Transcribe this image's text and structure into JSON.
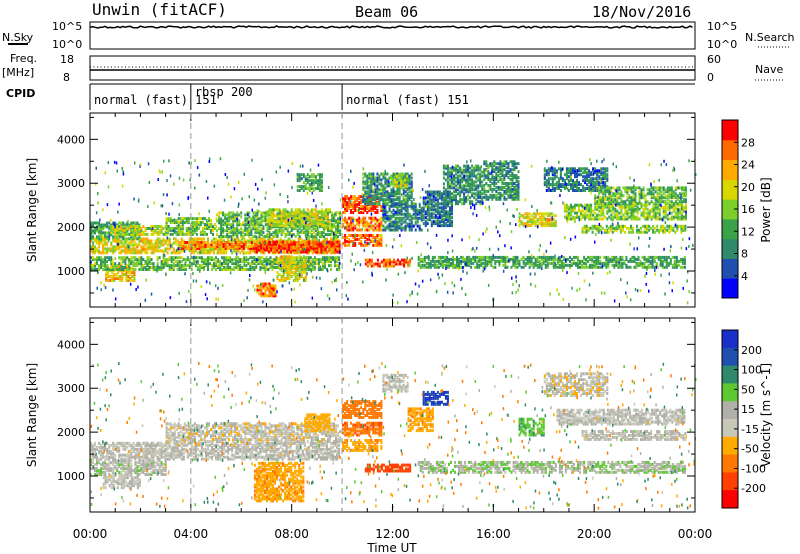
{
  "header": {
    "station": "Unwin (fitACF)",
    "beam": "Beam 06",
    "date": "18/Nov/2016"
  },
  "strip_labels": {
    "nsky": "N.Sky",
    "nsky_hi": "10^5",
    "nsky_lo": "10^0",
    "nsearch": "N.Search",
    "nsearch_hi": "10^5",
    "nsearch_lo": "10^0",
    "freq": "Freq.",
    "freq_unit": "[MHz]",
    "freq_hi": "18",
    "freq_lo": "8",
    "nave_hi": "60",
    "nave_lo": "0",
    "nave": "Nave",
    "cpid": "CPID"
  },
  "cpid_segments": [
    {
      "label": "normal (fast) 151",
      "start": 0.0,
      "end": 4.0
    },
    {
      "label": "rbsp 200",
      "start": 4.0,
      "end": 10.0
    },
    {
      "label": "normal (fast) 151",
      "start": 10.0,
      "end": 24.0
    }
  ],
  "colors": {
    "power": [
      "#0000ff",
      "#1f50b0",
      "#2e8a6a",
      "#3aa34a",
      "#7ccf2a",
      "#d8d800",
      "#ffaa00",
      "#ff6a00",
      "#ff0000"
    ],
    "velocity": [
      "#1a2fc8",
      "#1f50b0",
      "#2e8a6a",
      "#5ec832",
      "#b0b0a8",
      "#c8c8b8",
      "#ffaa00",
      "#ff7800",
      "#ff4000",
      "#ff0000"
    ]
  },
  "chart_data": [
    {
      "type": "heatmap",
      "title": "",
      "ylabel": "Slant Range [km]",
      "xlabel": "Time UT",
      "x_ticks": [
        "00:00",
        "04:00",
        "08:00",
        "12:00",
        "16:00",
        "20:00",
        "00:00"
      ],
      "xlim": [
        0,
        24
      ],
      "y_ticks": [
        "1000",
        "2000",
        "3000",
        "4000"
      ],
      "ylim": [
        180,
        4600
      ],
      "colorbar_label": "Power [dB]",
      "colorbar_ticks": [
        "4",
        "8",
        "12",
        "16",
        "20",
        "24",
        "28"
      ],
      "colorbar_range": [
        0,
        32
      ],
      "bands": [
        {
          "t0": 0.0,
          "t1": 9.9,
          "r0": 1380,
          "r1": 1720,
          "p": 20
        },
        {
          "t0": 3.5,
          "t1": 9.9,
          "r0": 1480,
          "r1": 1620,
          "p": 26
        },
        {
          "t0": 6.5,
          "t1": 9.9,
          "r0": 1400,
          "r1": 1650,
          "p": 28
        },
        {
          "t0": 0.0,
          "t1": 2.0,
          "r0": 1700,
          "r1": 2100,
          "p": 12
        },
        {
          "t0": 0.8,
          "t1": 3.0,
          "r0": 1800,
          "r1": 2000,
          "p": 18
        },
        {
          "t0": 0.6,
          "t1": 1.8,
          "r0": 750,
          "r1": 1100,
          "p": 22
        },
        {
          "t0": 0.0,
          "t1": 9.9,
          "r0": 1000,
          "r1": 1300,
          "p": 14
        },
        {
          "t0": 6.6,
          "t1": 7.4,
          "r0": 400,
          "r1": 700,
          "p": 26
        },
        {
          "t0": 7.4,
          "t1": 8.6,
          "r0": 750,
          "r1": 1300,
          "p": 20
        },
        {
          "t0": 3.0,
          "t1": 5.0,
          "r0": 1800,
          "r1": 2200,
          "p": 14
        },
        {
          "t0": 5.0,
          "t1": 9.9,
          "r0": 1750,
          "r1": 2300,
          "p": 14
        },
        {
          "t0": 7.0,
          "t1": 9.5,
          "r0": 2000,
          "r1": 2400,
          "p": 18
        },
        {
          "t0": 8.2,
          "t1": 9.2,
          "r0": 2800,
          "r1": 3200,
          "p": 12
        },
        {
          "t0": 10.0,
          "t1": 11.6,
          "r0": 2300,
          "r1": 2700,
          "p": 28
        },
        {
          "t0": 10.0,
          "t1": 11.6,
          "r0": 1900,
          "r1": 2200,
          "p": 26
        },
        {
          "t0": 10.0,
          "t1": 11.6,
          "r0": 1550,
          "r1": 1800,
          "p": 26
        },
        {
          "t0": 11.6,
          "t1": 13.2,
          "r0": 1900,
          "r1": 2500,
          "p": 8
        },
        {
          "t0": 10.8,
          "t1": 12.8,
          "r0": 2500,
          "r1": 3200,
          "p": 10
        },
        {
          "t0": 11.9,
          "t1": 12.6,
          "r0": 2900,
          "r1": 3200,
          "p": 18
        },
        {
          "t0": 10.9,
          "t1": 12.7,
          "r0": 1080,
          "r1": 1250,
          "p": 28
        },
        {
          "t0": 13.2,
          "t1": 14.4,
          "r0": 2000,
          "r1": 2800,
          "p": 8
        },
        {
          "t0": 14.0,
          "t1": 15.6,
          "r0": 2500,
          "r1": 3400,
          "p": 10
        },
        {
          "t0": 15.6,
          "t1": 17.0,
          "r0": 2600,
          "r1": 3500,
          "p": 10
        },
        {
          "t0": 17.0,
          "t1": 18.5,
          "r0": 2000,
          "r1": 2300,
          "p": 20
        },
        {
          "t0": 18.0,
          "t1": 20.5,
          "r0": 2800,
          "r1": 3300,
          "p": 8
        },
        {
          "t0": 18.8,
          "t1": 23.6,
          "r0": 2150,
          "r1": 2500,
          "p": 16
        },
        {
          "t0": 19.5,
          "t1": 23.6,
          "r0": 1850,
          "r1": 2000,
          "p": 16
        },
        {
          "t0": 20.0,
          "t1": 23.6,
          "r0": 2500,
          "r1": 2900,
          "p": 14
        },
        {
          "t0": 13.0,
          "t1": 23.6,
          "r0": 1050,
          "r1": 1300,
          "p": 12
        }
      ]
    },
    {
      "type": "heatmap",
      "title": "",
      "ylabel": "Slant Range [km]",
      "xlabel": "Time UT",
      "x_ticks": [
        "00:00",
        "04:00",
        "08:00",
        "12:00",
        "16:00",
        "20:00",
        "00:00"
      ],
      "xlim": [
        0,
        24
      ],
      "y_ticks": [
        "1000",
        "2000",
        "3000",
        "4000"
      ],
      "ylim": [
        180,
        4600
      ],
      "colorbar_label": "Velocity [m s^-1]",
      "colorbar_ticks": [
        "200",
        "100",
        "50",
        "15",
        "-15",
        "-50",
        "-100",
        "-200"
      ],
      "colorbar_range": [
        -250,
        250
      ],
      "bands": [
        {
          "t0": 0.0,
          "t1": 9.9,
          "r0": 1350,
          "r1": 1750,
          "v": 0
        },
        {
          "t0": 0.0,
          "t1": 3.0,
          "r0": 1000,
          "r1": 1350,
          "v": 5
        },
        {
          "t0": 0.5,
          "t1": 2.0,
          "r0": 700,
          "r1": 1000,
          "v": 0
        },
        {
          "t0": 6.5,
          "t1": 8.5,
          "r0": 400,
          "r1": 1300,
          "v": -40
        },
        {
          "t0": 3.0,
          "t1": 9.9,
          "r0": 1750,
          "r1": 2200,
          "v": -5
        },
        {
          "t0": 8.5,
          "t1": 9.5,
          "r0": 2000,
          "r1": 2400,
          "v": -30
        },
        {
          "t0": 10.0,
          "t1": 11.6,
          "r0": 2300,
          "r1": 2700,
          "v": -80
        },
        {
          "t0": 10.0,
          "t1": 11.6,
          "r0": 1900,
          "r1": 2200,
          "v": -90
        },
        {
          "t0": 10.0,
          "t1": 11.6,
          "r0": 1550,
          "r1": 1800,
          "v": -40
        },
        {
          "t0": 10.9,
          "t1": 12.7,
          "r0": 1080,
          "r1": 1250,
          "v": -120
        },
        {
          "t0": 11.6,
          "t1": 12.6,
          "r0": 2900,
          "r1": 3300,
          "v": 0
        },
        {
          "t0": 12.6,
          "t1": 13.6,
          "r0": 2000,
          "r1": 2500,
          "v": -40
        },
        {
          "t0": 13.2,
          "t1": 14.2,
          "r0": 2600,
          "r1": 2900,
          "v": 200
        },
        {
          "t0": 17.0,
          "t1": 18.0,
          "r0": 1900,
          "r1": 2300,
          "v": 40
        },
        {
          "t0": 18.5,
          "t1": 23.6,
          "r0": 2150,
          "r1": 2500,
          "v": 0
        },
        {
          "t0": 19.5,
          "t1": 23.6,
          "r0": 1800,
          "r1": 2000,
          "v": 0
        },
        {
          "t0": 18.0,
          "t1": 20.5,
          "r0": 2800,
          "r1": 3300,
          "v": -5
        },
        {
          "t0": 13.0,
          "t1": 23.6,
          "r0": 1050,
          "r1": 1300,
          "v": 10
        }
      ]
    }
  ]
}
